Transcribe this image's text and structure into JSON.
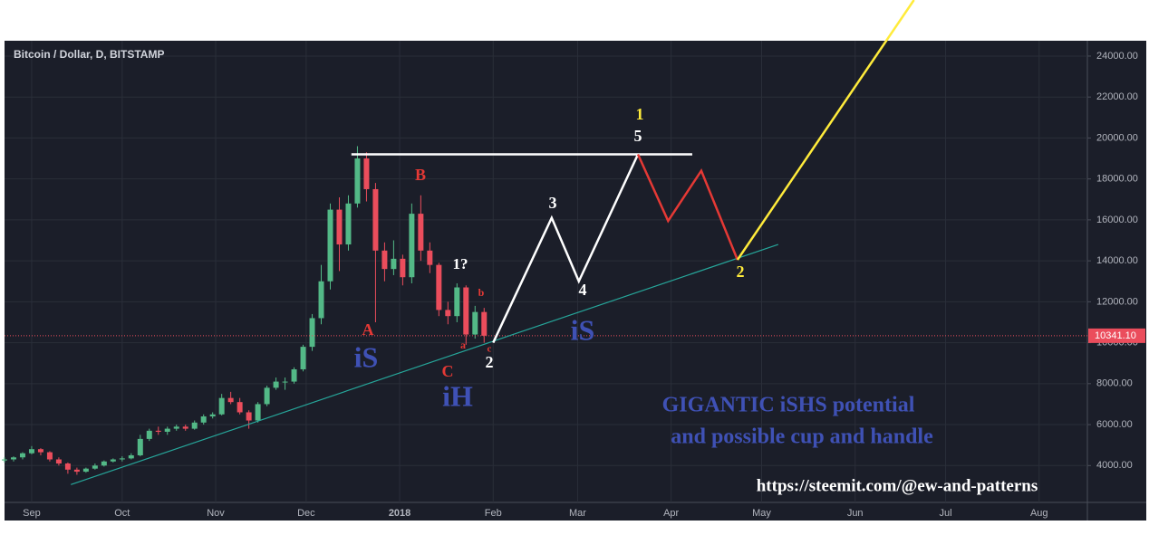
{
  "chart_data": {
    "type": "candlestick",
    "title": "Bitcoin / Dollar, D, BITSTAMP",
    "x": [
      -9,
      -6,
      -3,
      0,
      3,
      6,
      9,
      12,
      15,
      18,
      21,
      24,
      27,
      30,
      33,
      36,
      39,
      42,
      45,
      48,
      51,
      54,
      57,
      60,
      63,
      66,
      69,
      72,
      75,
      78,
      81,
      84,
      87,
      90,
      93,
      96,
      99,
      102,
      105,
      108,
      111,
      114,
      117,
      120,
      123,
      126,
      129,
      132,
      135,
      138,
      141,
      144,
      147,
      150
    ],
    "open": [
      4250,
      4300,
      4400,
      4600,
      4800,
      4650,
      4300,
      4100,
      3800,
      3700,
      3850,
      4000,
      4200,
      4300,
      4350,
      4500,
      5300,
      5700,
      5650,
      5800,
      5900,
      5800,
      6100,
      6400,
      6500,
      7300,
      7100,
      6600,
      6200,
      7000,
      7800,
      8100,
      8100,
      8700,
      9800,
      11200,
      13000,
      16500,
      14800,
      16800,
      19000,
      17500,
      14500,
      13600,
      14100,
      13200,
      16300,
      14500,
      13800,
      11600,
      11300,
      12700,
      10400,
      11500
    ],
    "high": [
      4400,
      4450,
      4650,
      4950,
      4850,
      4700,
      4400,
      4150,
      3900,
      3900,
      4100,
      4250,
      4350,
      4450,
      4600,
      5500,
      5800,
      5900,
      5900,
      6000,
      6000,
      6200,
      6500,
      6600,
      7500,
      7600,
      7300,
      6700,
      7100,
      7900,
      8300,
      8300,
      8800,
      9900,
      11400,
      13800,
      16800,
      17100,
      17200,
      19600,
      19300,
      17800,
      14900,
      15000,
      14300,
      16800,
      17200,
      14900,
      13900,
      12000,
      12900,
      12800,
      11800,
      11700
    ],
    "low": [
      4150,
      4200,
      4300,
      4550,
      4500,
      4200,
      4000,
      3600,
      3550,
      3650,
      3800,
      3950,
      4150,
      4200,
      4300,
      4450,
      5200,
      5500,
      5500,
      5700,
      5700,
      5750,
      6000,
      6300,
      6450,
      7000,
      6500,
      5800,
      6100,
      6900,
      7700,
      7700,
      8000,
      8600,
      9600,
      10900,
      12600,
      13500,
      14500,
      16600,
      16900,
      11000,
      13000,
      13300,
      12800,
      12900,
      14000,
      13400,
      11300,
      10900,
      11000,
      9900,
      10200,
      10000
    ],
    "close": [
      4300,
      4400,
      4600,
      4800,
      4650,
      4300,
      4100,
      3800,
      3700,
      3850,
      4000,
      4200,
      4300,
      4350,
      4500,
      5300,
      5700,
      5650,
      5800,
      5900,
      5800,
      6100,
      6400,
      6500,
      7300,
      7100,
      6600,
      6200,
      7000,
      7800,
      8100,
      8100,
      8700,
      9800,
      11200,
      13000,
      16500,
      14800,
      16800,
      19000,
      17500,
      14500,
      13600,
      14100,
      13200,
      16300,
      14500,
      13800,
      11600,
      11300,
      12700,
      10400,
      11500,
      10341.1
    ],
    "up_color": "#53b987",
    "down_color": "#eb4d5c",
    "xlim": [
      -9,
      350
    ],
    "ylim": [
      2200,
      24750
    ],
    "xticks": [
      {
        "value": 0,
        "label": "Sep"
      },
      {
        "value": 30,
        "label": "Oct"
      },
      {
        "value": 61,
        "label": "Nov"
      },
      {
        "value": 91,
        "label": "Dec"
      },
      {
        "value": 122,
        "label": "2018"
      },
      {
        "value": 153,
        "label": "Feb"
      },
      {
        "value": 181,
        "label": "Mar"
      },
      {
        "value": 212,
        "label": "Apr"
      },
      {
        "value": 242,
        "label": "May"
      },
      {
        "value": 273,
        "label": "Jun"
      },
      {
        "value": 303,
        "label": "Jul"
      },
      {
        "value": 334,
        "label": "Aug"
      }
    ],
    "yticks": [
      {
        "value": 4000,
        "label": "4000.00"
      },
      {
        "value": 6000,
        "label": "6000.00"
      },
      {
        "value": 8000,
        "label": "8000.00"
      },
      {
        "value": 10000,
        "label": "10000.00"
      },
      {
        "value": 12000,
        "label": "12000.00"
      },
      {
        "value": 14000,
        "label": "14000.00"
      },
      {
        "value": 16000,
        "label": "16000.00"
      },
      {
        "value": 18000,
        "label": "18000.00"
      },
      {
        "value": 20000,
        "label": "20000.00"
      },
      {
        "value": 22000,
        "label": "22000.00"
      },
      {
        "value": 24000,
        "label": "24000.00"
      }
    ],
    "grid": true,
    "last_price": {
      "value": 10341.1,
      "label": "10341.10",
      "color": "#eb4d5c"
    },
    "drawings": [
      {
        "color": "#ffffff",
        "x": [
          106,
          219
        ],
        "values": [
          19200,
          19200
        ]
      },
      {
        "color": "#26a69a",
        "x": [
          13,
          247.5
        ],
        "values": [
          3070,
          14800
        ]
      },
      {
        "color": "#ffffff",
        "x": [
          153,
          172.4,
          181.4,
          201
        ],
        "values": [
          10000,
          16100,
          13000,
          19200
        ]
      },
      {
        "color": "#e53935",
        "x": [
          201,
          211,
          222,
          234
        ],
        "values": [
          19200,
          15950,
          18400,
          14050
        ]
      },
      {
        "color": "#ffeb3b",
        "x": [
          234,
          292.5
        ],
        "values": [
          14050,
          26740
        ]
      }
    ],
    "annotations": [
      "1",
      "5",
      "B",
      "3",
      "1?",
      "b",
      "4",
      "A",
      "iS",
      "a",
      "c",
      "2",
      "C",
      "iH",
      "iS",
      "2",
      "GIGANTIC iSHS potential",
      "and possible cup and handle",
      "https://steemit.com/@ew-and-patterns"
    ]
  }
}
